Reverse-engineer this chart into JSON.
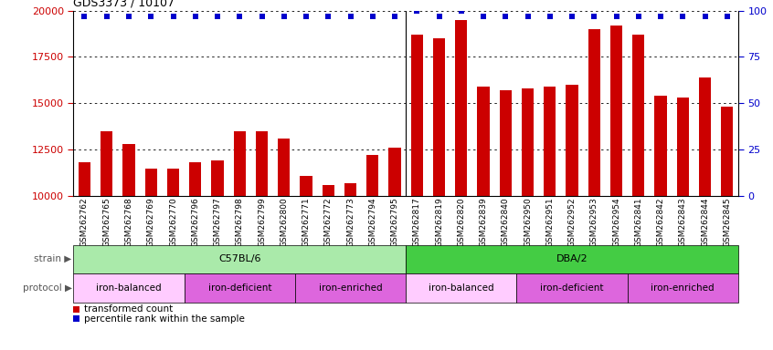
{
  "title": "GDS3373 / 10107",
  "samples": [
    "GSM262762",
    "GSM262765",
    "GSM262768",
    "GSM262769",
    "GSM262770",
    "GSM262796",
    "GSM262797",
    "GSM262798",
    "GSM262799",
    "GSM262800",
    "GSM262771",
    "GSM262772",
    "GSM262773",
    "GSM262794",
    "GSM262795",
    "GSM262817",
    "GSM262819",
    "GSM262820",
    "GSM262839",
    "GSM262840",
    "GSM262950",
    "GSM262951",
    "GSM262952",
    "GSM262953",
    "GSM262954",
    "GSM262841",
    "GSM262842",
    "GSM262843",
    "GSM262844",
    "GSM262845"
  ],
  "bar_values": [
    11800,
    13500,
    12800,
    11500,
    11500,
    11800,
    11900,
    13500,
    13500,
    13100,
    11100,
    10600,
    10700,
    12200,
    12600,
    18700,
    18500,
    19500,
    15900,
    15700,
    15800,
    15900,
    16000,
    19000,
    19200,
    18700,
    15400,
    15300,
    16400,
    14800
  ],
  "percentile_values": [
    97,
    97,
    97,
    97,
    97,
    97,
    97,
    97,
    97,
    97,
    97,
    97,
    97,
    97,
    97,
    100,
    97,
    100,
    97,
    97,
    97,
    97,
    97,
    97,
    97,
    97,
    97,
    97,
    97,
    97
  ],
  "bar_color": "#cc0000",
  "dot_color": "#0000cc",
  "ylim_left": [
    10000,
    20000
  ],
  "ylim_right": [
    0,
    100
  ],
  "yticks_left": [
    10000,
    12500,
    15000,
    17500,
    20000
  ],
  "yticks_right": [
    0,
    25,
    50,
    75,
    100
  ],
  "strain_groups": [
    {
      "label": "C57BL/6",
      "start": 0,
      "end": 15,
      "color": "#aaeaaa"
    },
    {
      "label": "DBA/2",
      "start": 15,
      "end": 30,
      "color": "#44cc44"
    }
  ],
  "protocol_groups": [
    {
      "label": "iron-balanced",
      "start": 0,
      "end": 5,
      "color": "#ffccff"
    },
    {
      "label": "iron-deficient",
      "start": 5,
      "end": 10,
      "color": "#dd66dd"
    },
    {
      "label": "iron-enriched",
      "start": 10,
      "end": 15,
      "color": "#dd66dd"
    },
    {
      "label": "iron-balanced",
      "start": 15,
      "end": 20,
      "color": "#ffccff"
    },
    {
      "label": "iron-deficient",
      "start": 20,
      "end": 25,
      "color": "#dd66dd"
    },
    {
      "label": "iron-enriched",
      "start": 25,
      "end": 30,
      "color": "#dd66dd"
    }
  ],
  "legend_items": [
    {
      "label": "transformed count",
      "color": "#cc0000"
    },
    {
      "label": "percentile rank within the sample",
      "color": "#0000cc"
    }
  ],
  "background_color": "#ffffff",
  "grid_color": "#000000",
  "tick_label_color_left": "#cc0000",
  "tick_label_color_right": "#0000cc",
  "separator_index": 14.5,
  "xticklabel_fontsize": 6.5,
  "bar_width": 0.55
}
